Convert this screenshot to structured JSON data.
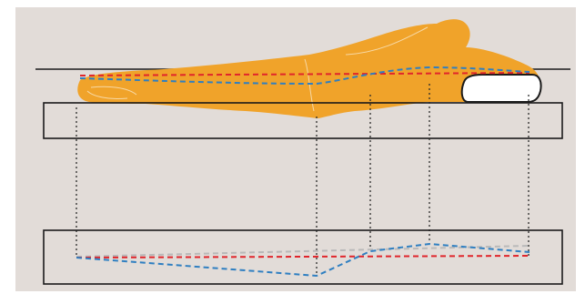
{
  "colors": {
    "background": "#e2dcd8",
    "body": "#f0a32a",
    "outline": "#f7d9a6",
    "line": "#1a1a1a",
    "red_dash": "#e0252b",
    "blue_dash": "#2f7fc1",
    "gray_dash": "#b9b9b9",
    "pillow": "#ffffff",
    "frame": "#ffffff"
  },
  "icons": [
    "person-lying-silhouette",
    "pillow-shape"
  ],
  "lines": [
    "reference-line-red",
    "spine-line-blue",
    "ideal-line-gray"
  ]
}
